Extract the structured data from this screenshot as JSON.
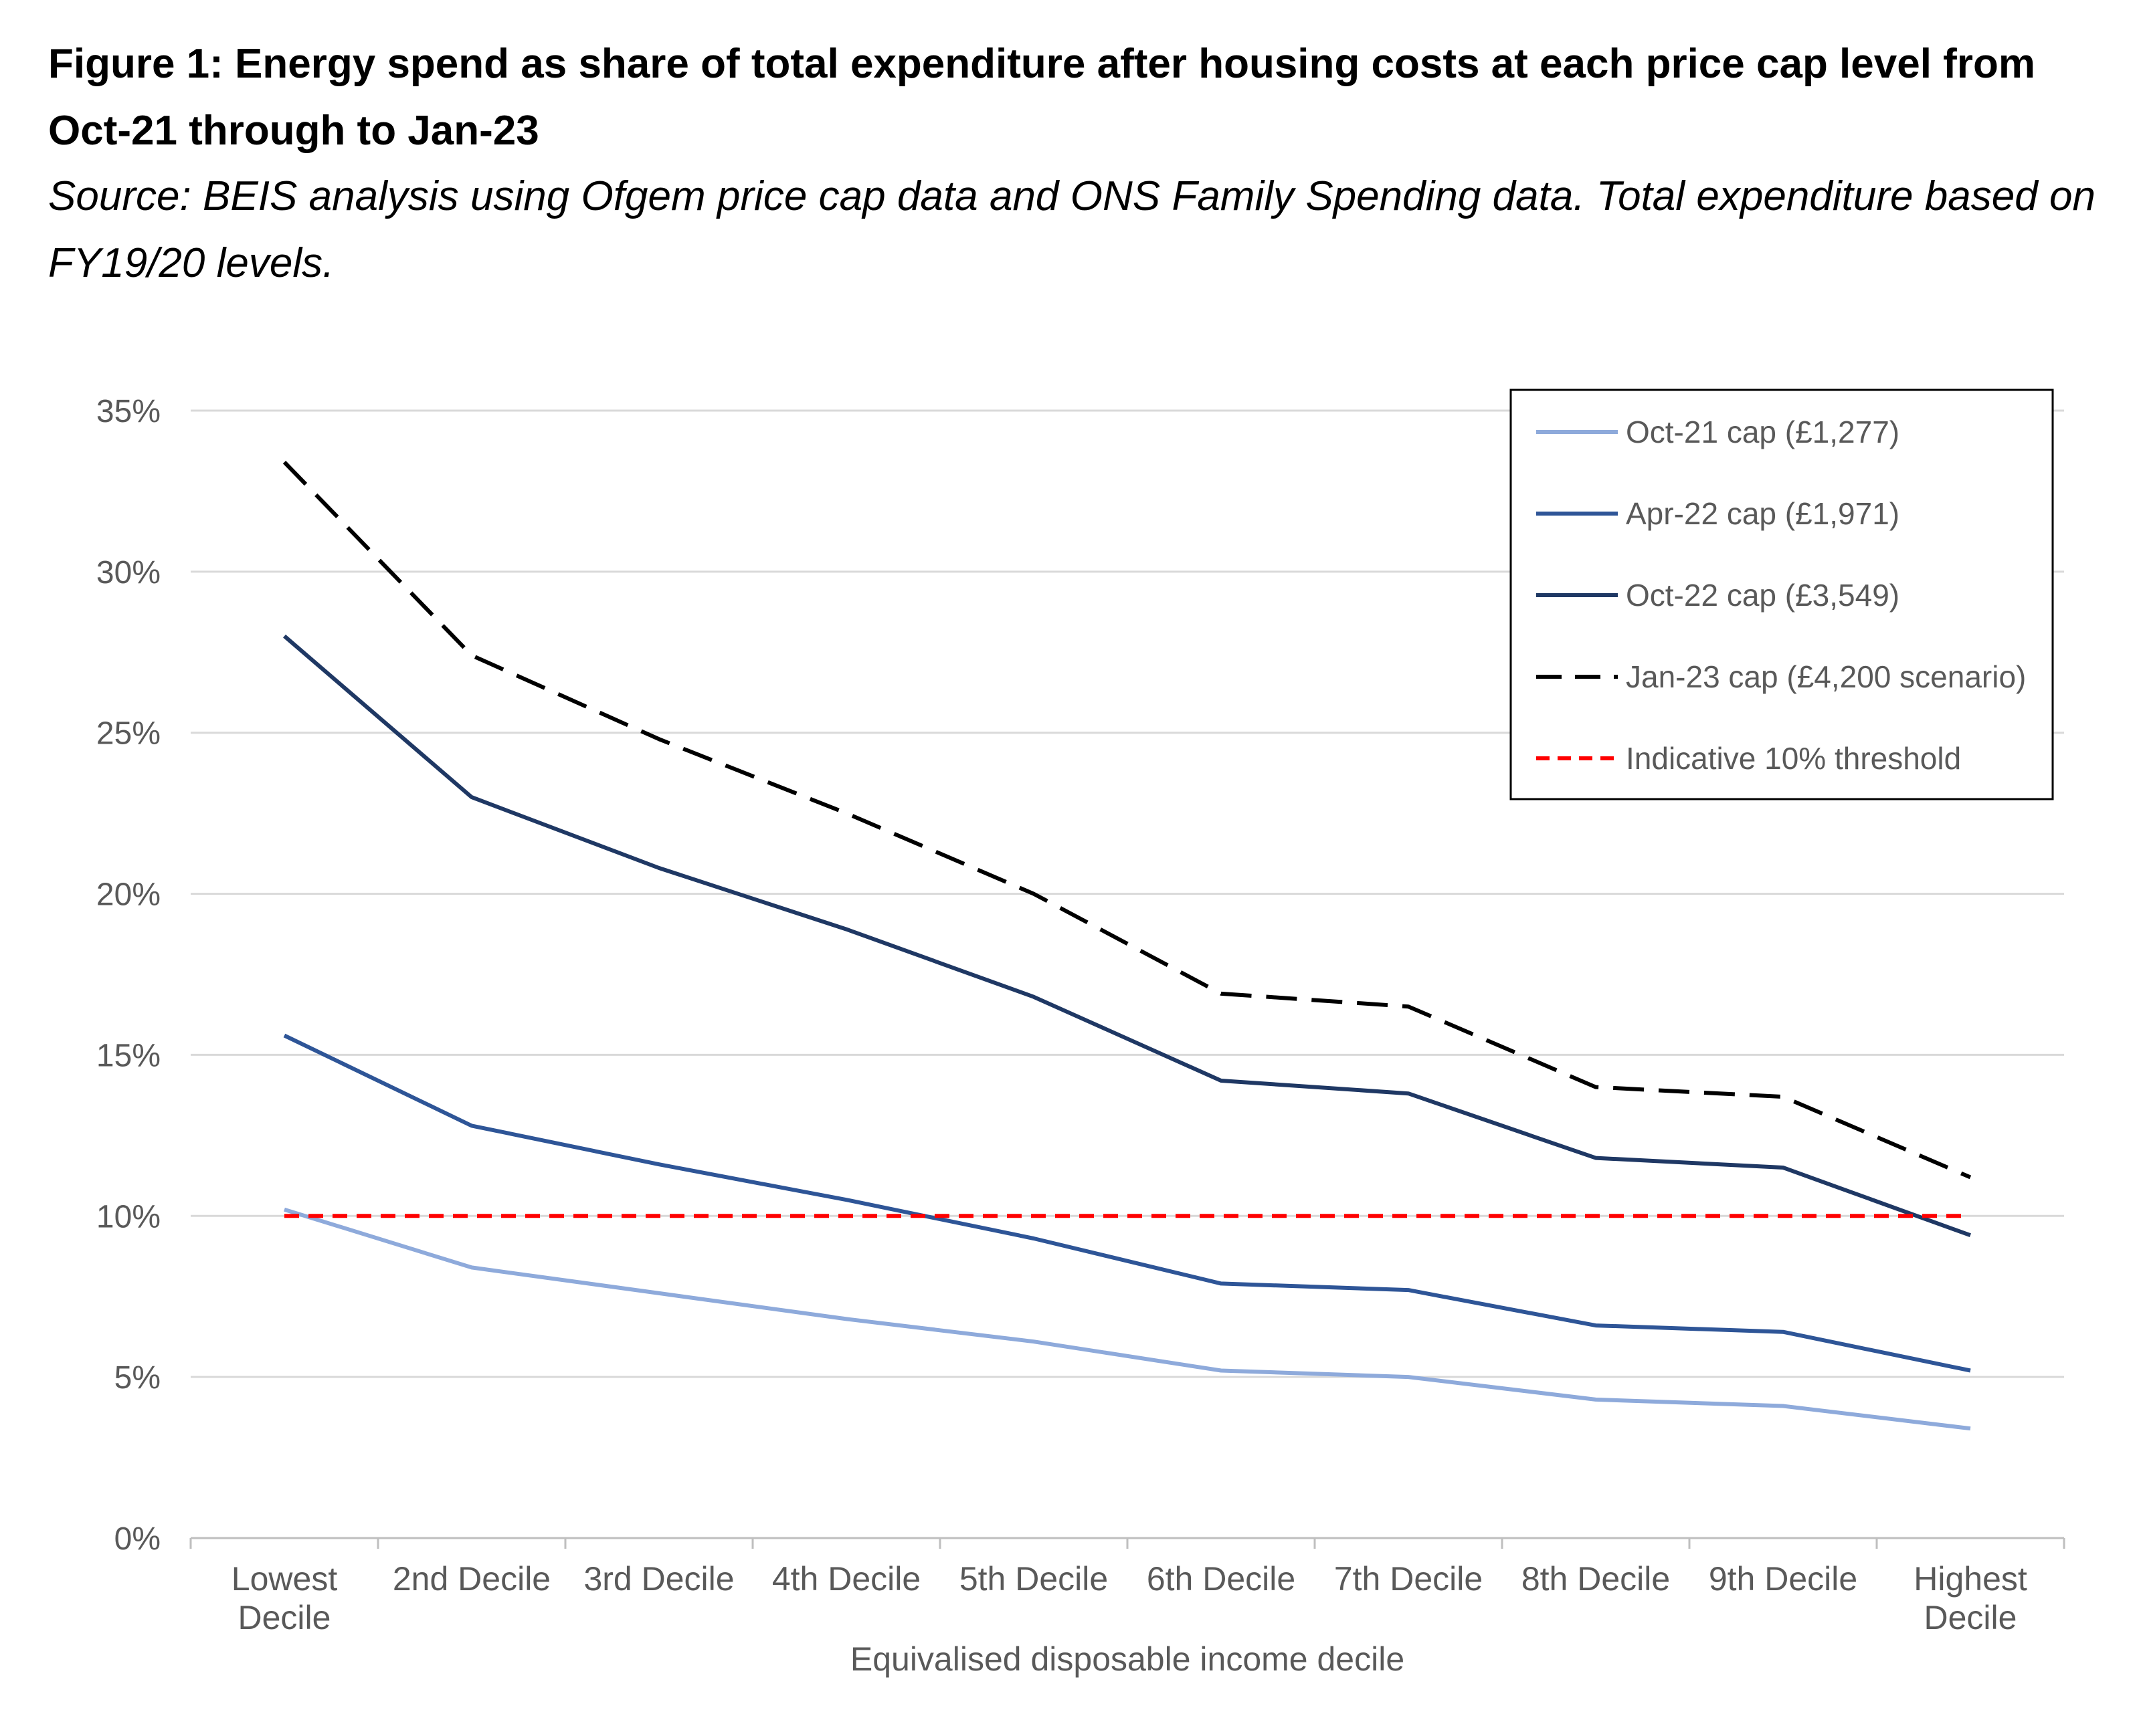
{
  "figure": {
    "title": "Figure 1: Energy spend as share of total expenditure after housing costs at each price cap level from Oct-21 through to Jan-23",
    "subtitle": "Source: BEIS analysis using Ofgem price cap data and ONS Family Spending data. Total expenditure based on FY19/20 levels."
  },
  "chart_data": {
    "type": "line",
    "title": "Figure 1: Energy spend as share of total expenditure after housing costs at each price cap level from Oct-21 through to Jan-23",
    "xlabel": "Equivalised disposable income decile",
    "ylabel": "",
    "categories": [
      "Lowest Decile",
      "2nd Decile",
      "3rd Decile",
      "4th Decile",
      "5th Decile",
      "6th Decile",
      "7th Decile",
      "8th Decile",
      "9th Decile",
      "Highest Decile"
    ],
    "y_ticks": [
      "0%",
      "5%",
      "10%",
      "15%",
      "20%",
      "25%",
      "30%",
      "35%"
    ],
    "ylim": [
      0,
      35
    ],
    "y_unit": "%",
    "grid": true,
    "legend_position": "top-right",
    "series": [
      {
        "name": "Oct-21 cap (£1,277)",
        "color": "#8eaadb",
        "dash": "solid",
        "values": [
          10.2,
          8.4,
          7.6,
          6.8,
          6.1,
          5.2,
          5.0,
          4.3,
          4.1,
          3.4
        ]
      },
      {
        "name": "Apr-22 cap (£1,971)",
        "color": "#2e5597",
        "dash": "solid",
        "values": [
          15.6,
          12.8,
          11.6,
          10.5,
          9.3,
          7.9,
          7.7,
          6.6,
          6.4,
          5.2
        ]
      },
      {
        "name": "Oct-22 cap (£3,549)",
        "color": "#1f3864",
        "dash": "solid",
        "values": [
          28.0,
          23.0,
          20.8,
          18.9,
          16.8,
          14.2,
          13.8,
          11.8,
          11.5,
          9.4
        ]
      },
      {
        "name": "Jan-23 cap (£4,200 scenario)",
        "color": "#000000",
        "dash": "long",
        "values": [
          33.4,
          27.4,
          24.8,
          22.5,
          20.0,
          16.9,
          16.5,
          14.0,
          13.7,
          11.2
        ]
      },
      {
        "name": "Indicative 10% threshold",
        "color": "#ff0000",
        "dash": "short",
        "values": [
          10,
          10,
          10,
          10,
          10,
          10,
          10,
          10,
          10,
          10
        ]
      }
    ]
  }
}
